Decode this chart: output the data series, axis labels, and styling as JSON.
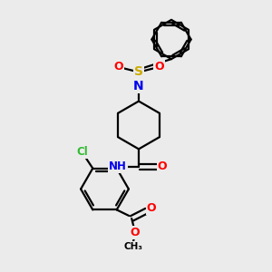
{
  "bg_color": "#ebebeb",
  "bond_color": "#000000",
  "atom_colors": {
    "N": "#0000ee",
    "O": "#ff0000",
    "S": "#ccaa00",
    "Cl": "#33bb33",
    "C": "#000000",
    "H": "#555555"
  },
  "figsize": [
    3.0,
    3.0
  ],
  "dpi": 100
}
